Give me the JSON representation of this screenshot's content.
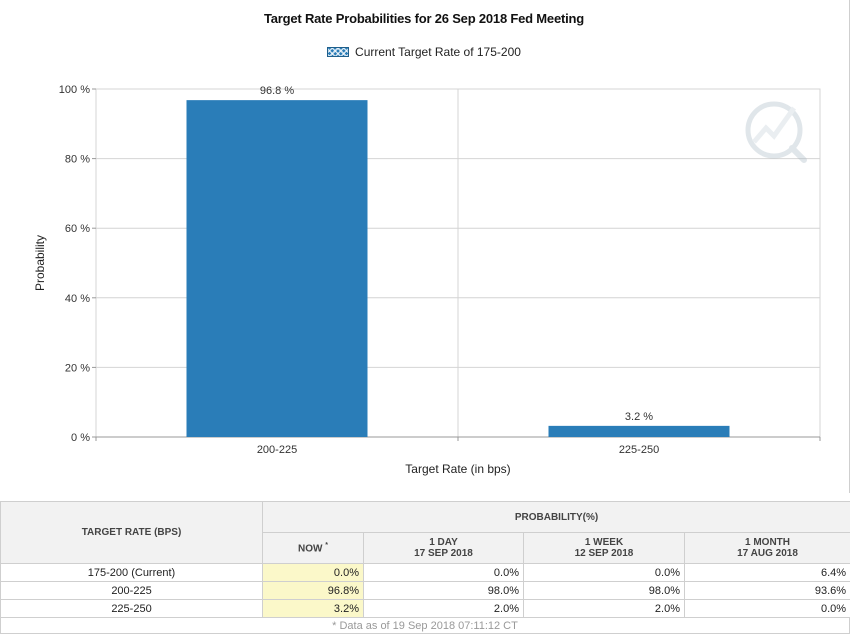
{
  "chart_data": {
    "type": "bar",
    "title": "Target Rate Probabilities for 26 Sep 2018 Fed Meeting",
    "legend": "Current Target Rate of 175-200",
    "categories": [
      "200-225",
      "225-250"
    ],
    "values": [
      96.8,
      3.2
    ],
    "data_labels": [
      "96.8 %",
      "3.2 %"
    ],
    "xlabel": "Target Rate (in bps)",
    "ylabel": "Probability",
    "ylim": [
      0,
      100
    ],
    "yticks": [
      0,
      20,
      40,
      60,
      80,
      100
    ],
    "ytick_labels": [
      "0 %",
      "20 %",
      "40 %",
      "60 %",
      "80 %",
      "100 %"
    ],
    "grid": true,
    "colors": {
      "bar": "#2a7db8",
      "grid": "#d4d4d4"
    }
  },
  "table": {
    "rate_header": "TARGET RATE (BPS)",
    "prob_header": "PROBABILITY(%)",
    "now_header": "NOW",
    "now_marker": "*",
    "columns": [
      {
        "line1": "1 DAY",
        "line2": "17 SEP 2018"
      },
      {
        "line1": "1 WEEK",
        "line2": "12 SEP 2018"
      },
      {
        "line1": "1 MONTH",
        "line2": "17 AUG 2018"
      }
    ],
    "rows": [
      {
        "rate": "175-200 (Current)",
        "now": "0.0%",
        "day": "0.0%",
        "week": "0.0%",
        "month": "6.4%"
      },
      {
        "rate": "200-225",
        "now": "96.8%",
        "day": "98.0%",
        "week": "98.0%",
        "month": "93.6%"
      },
      {
        "rate": "225-250",
        "now": "3.2%",
        "day": "2.0%",
        "week": "2.0%",
        "month": "0.0%"
      }
    ],
    "footnote": "* Data as of 19 Sep 2018 07:11:12 CT"
  },
  "watermark_icon": "cme-fedwatch-logo-icon"
}
